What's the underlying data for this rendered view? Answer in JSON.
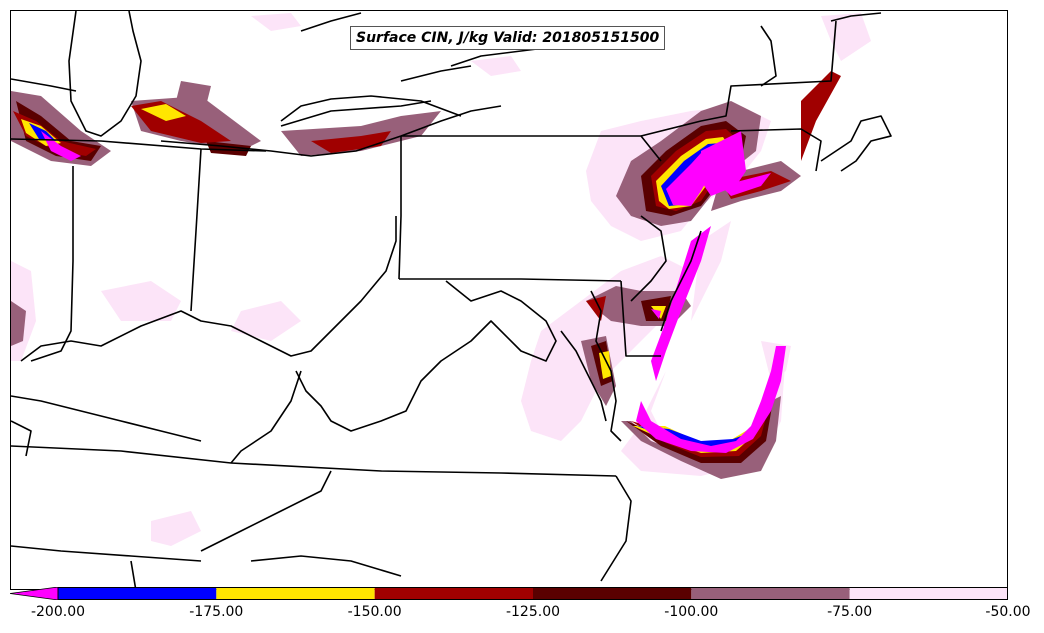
{
  "map": {
    "title": "Surface CIN, J/kg Valid: 201805151500",
    "projection_region": "Mid-Atlantic / Ohio Valley / Northeast US",
    "colorbar": {
      "ticks": [
        "-200.00",
        "-175.00",
        "-150.00",
        "-125.00",
        "-100.00",
        "-75.00",
        "-50.00"
      ],
      "bins": [
        {
          "range": "< -200",
          "color": "#ff00ff"
        },
        {
          "range": "-200 to -175",
          "color": "#0000ff"
        },
        {
          "range": "-175 to -150",
          "color": "#ffe600"
        },
        {
          "range": "-150 to -125",
          "color": "#a00000"
        },
        {
          "range": "-125 to -100",
          "color": "#5a0000"
        },
        {
          "range": "-100 to -75",
          "color": "#98607a"
        },
        {
          "range": "-75 to -50",
          "color": "#fce4f8"
        }
      ],
      "extend": "min"
    }
  }
}
